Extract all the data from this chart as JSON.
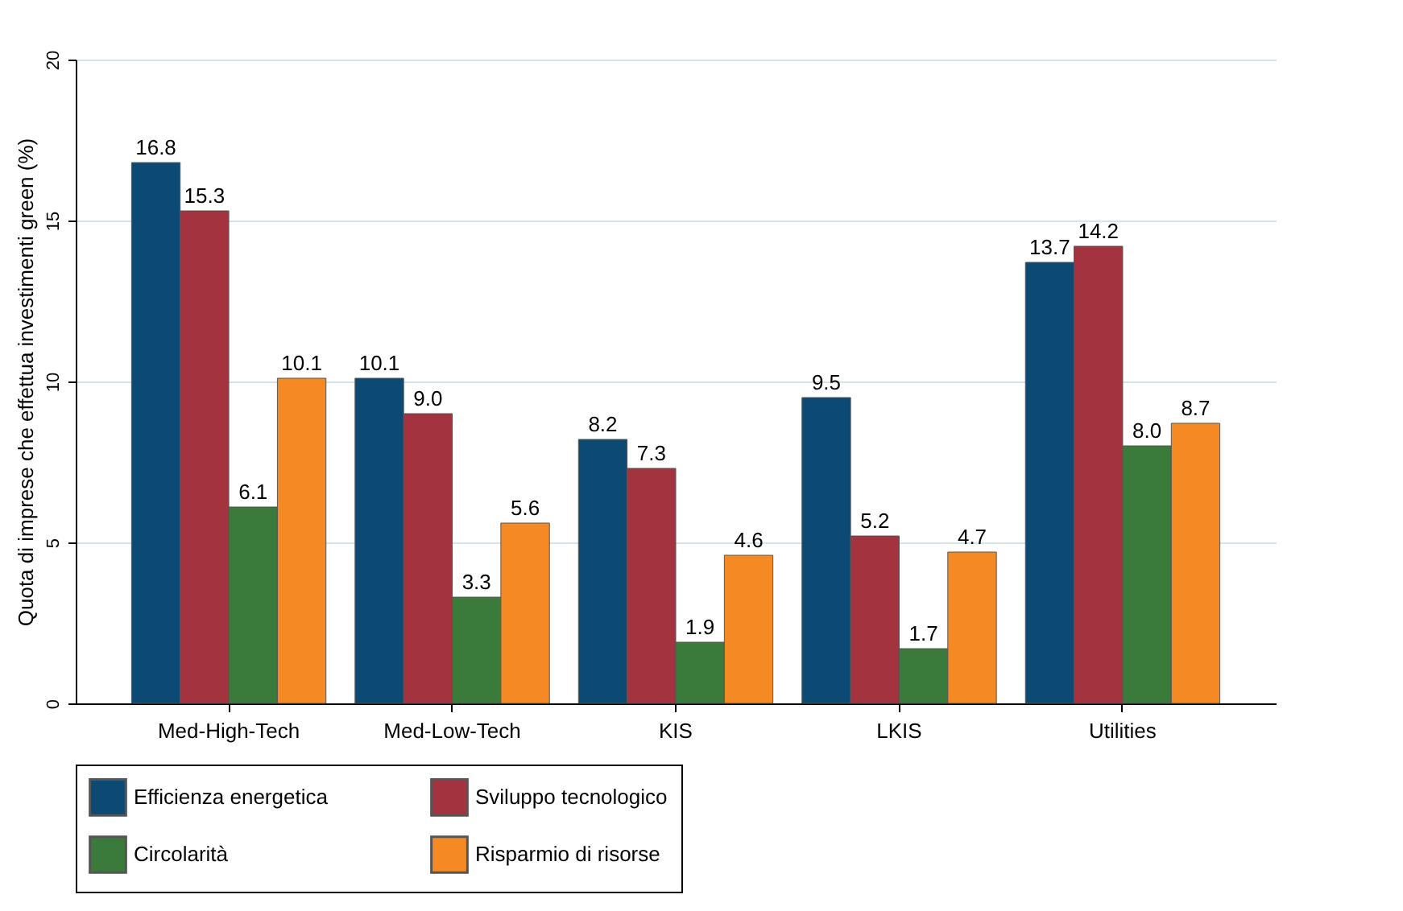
{
  "chart_data": {
    "type": "bar",
    "ylabel": "Quota di imprese che effettua investimenti green (%)",
    "categories": [
      "Med-High-Tech",
      "Med-Low-Tech",
      "KIS",
      "LKIS",
      "Utilities"
    ],
    "series": [
      {
        "name": "Efficienza energetica",
        "color": "#0d4a73",
        "values": [
          16.8,
          10.1,
          8.2,
          9.5,
          13.7
        ],
        "value_labels": [
          "16.8",
          "10.1",
          "8.2",
          "9.5",
          "13.7"
        ]
      },
      {
        "name": "Sviluppo tecnologico",
        "color": "#a3343f",
        "values": [
          15.3,
          9.0,
          7.3,
          5.2,
          14.2
        ],
        "value_labels": [
          "15.3",
          "9.0",
          "7.3",
          "5.2",
          "14.2"
        ]
      },
      {
        "name": "Circolarità",
        "color": "#3a7a3a",
        "values": [
          6.1,
          3.3,
          1.9,
          1.7,
          8.0
        ],
        "value_labels": [
          "6.1",
          "3.3",
          "1.9",
          "1.7",
          "8.0"
        ]
      },
      {
        "name": "Risparmio di risorse",
        "color": "#f58a25",
        "values": [
          10.1,
          5.6,
          4.6,
          4.7,
          8.7
        ],
        "value_labels": [
          "10.1",
          "5.6",
          "4.6",
          "4.7",
          "8.7"
        ]
      }
    ],
    "ylim": [
      0,
      20
    ],
    "yticks": [
      0,
      5,
      10,
      15,
      20
    ],
    "grid": "y",
    "legend": "bottom"
  }
}
